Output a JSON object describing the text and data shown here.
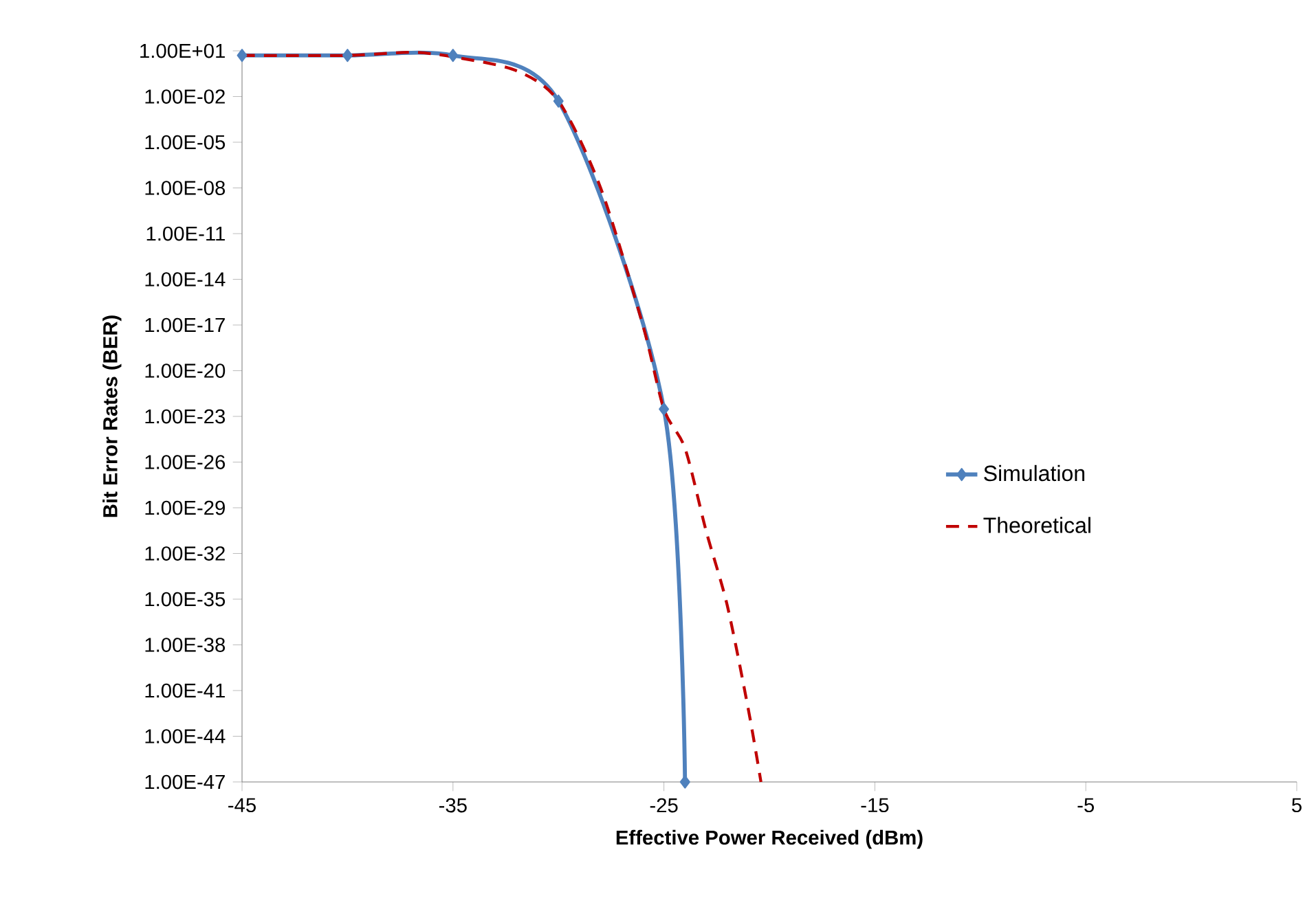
{
  "chart_data": {
    "type": "line",
    "xlabel": "Effective Power Received (dBm)",
    "ylabel": "Bit Error Rates (BER)",
    "xlim": [
      -45,
      5
    ],
    "xticks": [
      -45,
      -35,
      -25,
      -15,
      -5,
      5
    ],
    "ylim": [
      1e-47,
      10
    ],
    "log": "y",
    "yticks": [
      {
        "value": 10,
        "label": "1.00E+01"
      },
      {
        "value": 0.01,
        "label": "1.00E-02"
      },
      {
        "value": 1e-05,
        "label": "1.00E-05"
      },
      {
        "value": 1e-08,
        "label": "1.00E-08"
      },
      {
        "value": 1e-11,
        "label": "1.00E-11"
      },
      {
        "value": 1e-14,
        "label": "1.00E-14"
      },
      {
        "value": 1e-17,
        "label": "1.00E-17"
      },
      {
        "value": 1e-20,
        "label": "1.00E-20"
      },
      {
        "value": 1e-23,
        "label": "1.00E-23"
      },
      {
        "value": 1e-26,
        "label": "1.00E-26"
      },
      {
        "value": 1e-29,
        "label": "1.00E-29"
      },
      {
        "value": 1e-32,
        "label": "1.00E-32"
      },
      {
        "value": 1e-35,
        "label": "1.00E-35"
      },
      {
        "value": 1e-38,
        "label": "1.00E-38"
      },
      {
        "value": 1e-41,
        "label": "1.00E-41"
      },
      {
        "value": 1e-44,
        "label": "1.00E-44"
      },
      {
        "value": 1e-47,
        "label": "1.00E-47"
      }
    ],
    "grid": false,
    "legend": "right",
    "series": [
      {
        "name": "Simulation",
        "color": "#4f81bd",
        "marker": "diamond",
        "line_style": "solid",
        "x": [
          -45,
          -40,
          -35,
          -30,
          -25,
          -24
        ],
        "values": [
          5,
          5,
          5,
          0.005,
          3e-23,
          1e-47
        ]
      },
      {
        "name": "Theoretical",
        "color": "#c00000",
        "marker": "none",
        "line_style": "dashed",
        "x": [
          -45,
          -40,
          -37,
          -35,
          -32,
          -30,
          -28,
          -26,
          -25,
          -24,
          -23,
          -22,
          -21,
          -20.4
        ],
        "values": [
          5,
          5,
          8,
          4,
          0.5,
          0.005,
          1e-08,
          1e-17,
          3e-23,
          8e-26,
          3e-31,
          4e-36,
          6e-43,
          1e-47
        ]
      }
    ]
  }
}
